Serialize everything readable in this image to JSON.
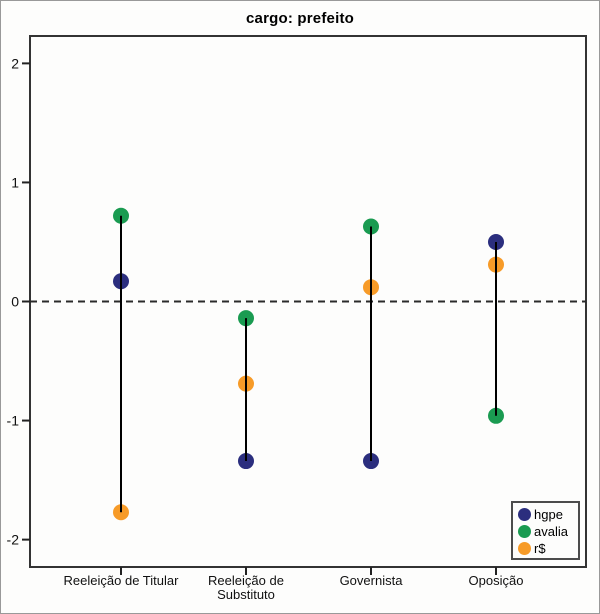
{
  "title": "cargo: prefeito",
  "chart_data": {
    "type": "dot-range",
    "title": "cargo: prefeito",
    "categories": [
      "Reeleição de Titular",
      "Reeleição de Substituto",
      "Governista",
      "Oposição"
    ],
    "series": [
      {
        "name": "hgpe",
        "color": "#2b2e7e",
        "values": [
          0.17,
          -1.34,
          -1.34,
          0.5
        ]
      },
      {
        "name": "avalia",
        "color": "#1a9b51",
        "values": [
          0.72,
          -0.14,
          0.63,
          -0.96
        ]
      },
      {
        "name": "r$",
        "color": "#f79b28",
        "values": [
          -1.77,
          -0.69,
          0.12,
          0.31
        ]
      }
    ],
    "ylim": [
      -2.23,
      2.23
    ],
    "yticks": [
      2,
      1,
      0,
      -1,
      -2
    ],
    "reference_line_y": 0,
    "grid": false,
    "legend_position": "bottom-right",
    "connector_color": "#000000",
    "reference_line_style": "dashed",
    "axis_color": "#333333"
  }
}
